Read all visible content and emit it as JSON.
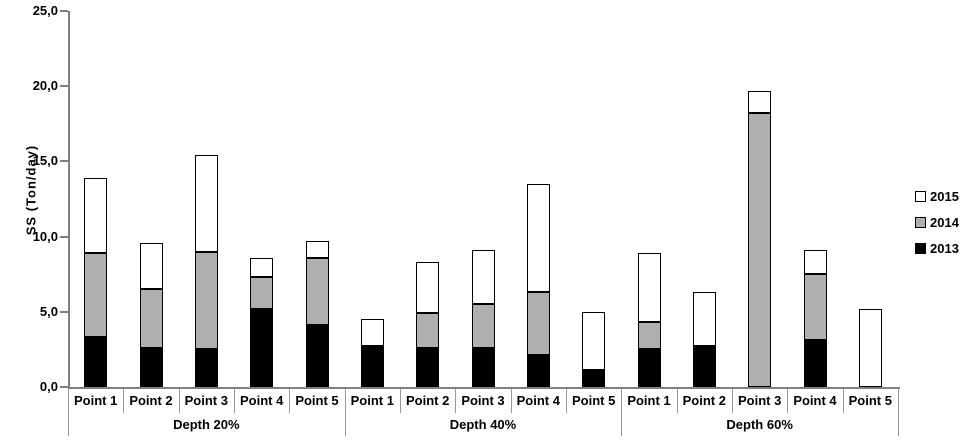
{
  "chart_data": {
    "type": "bar",
    "stacked": true,
    "title": "",
    "ylabel": "SS (Ton/day)",
    "xlabel": "",
    "ylim": [
      0,
      25
    ],
    "grid": false,
    "y_ticks": [
      0,
      5,
      10,
      15,
      20,
      25
    ],
    "y_tick_labels": [
      "0,0",
      "5,0",
      "10,0",
      "15,0",
      "20,0",
      "25,0"
    ],
    "group_labels": [
      "Depth 20%",
      "Depth 40%",
      "Depth 60%"
    ],
    "points_per_group": 5,
    "categories": [
      "Point 1",
      "Point 2",
      "Point 3",
      "Point 4",
      "Point 5",
      "Point 1",
      "Point 2",
      "Point 3",
      "Point 4",
      "Point 5",
      "Point 1",
      "Point 2",
      "Point 3",
      "Point 4",
      "Point 5"
    ],
    "series": [
      {
        "name": "2013",
        "color": "#000000",
        "values": [
          3.3,
          2.6,
          2.5,
          5.2,
          4.1,
          2.7,
          2.6,
          2.6,
          2.1,
          1.1,
          2.5,
          2.7,
          0,
          3.1,
          0
        ]
      },
      {
        "name": "2014",
        "color": "#b1aeae",
        "values": [
          5.6,
          3.9,
          6.5,
          2.1,
          4.5,
          0,
          2.3,
          2.9,
          4.2,
          0,
          1.8,
          0,
          18.2,
          4.4,
          0
        ]
      },
      {
        "name": "2015",
        "color": "#ffffff",
        "values": [
          5.0,
          3.1,
          6.4,
          1.3,
          1.1,
          1.8,
          3.4,
          3.6,
          7.2,
          3.9,
          4.6,
          3.6,
          1.5,
          1.6,
          5.2
        ]
      }
    ],
    "legend": {
      "position": "right",
      "entries": [
        {
          "label": "2015",
          "color": "#ffffff"
        },
        {
          "label": "2014",
          "color": "#b1aeae"
        },
        {
          "label": "2013",
          "color": "#000000"
        }
      ]
    },
    "colors": {
      "axis": "#808080",
      "separator": "#999999",
      "bar_border": "#000000",
      "text": "#000000",
      "background": "#ffffff"
    }
  }
}
